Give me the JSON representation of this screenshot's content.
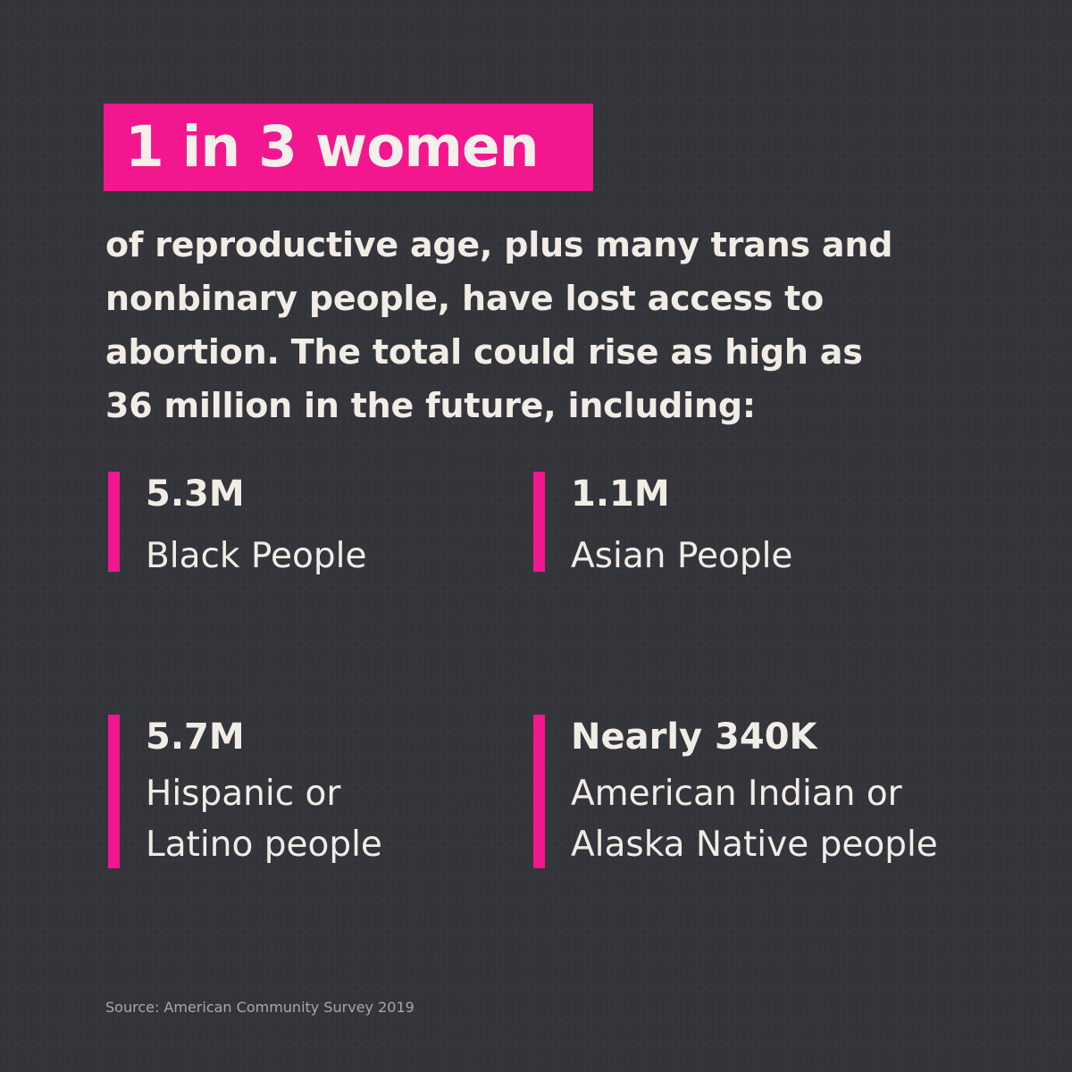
{
  "headline": "1 in 3 women",
  "body_lines": [
    "of reproductive age, plus many trans and",
    "nonbinary people, have lost access to",
    "abortion. The total could rise as high as",
    "36 million in the future, including:"
  ],
  "stats": [
    {
      "value": "5.3M",
      "label_lines": [
        "Black People"
      ]
    },
    {
      "value": "1.1M",
      "label_lines": [
        "Asian People"
      ]
    },
    {
      "value": "5.7M",
      "label_lines": [
        "Hispanic or",
        "Latino people"
      ]
    },
    {
      "value": "Nearly 340K",
      "label_lines": [
        "American Indian or",
        "Alaska Native people"
      ]
    }
  ],
  "source": "Source: American Community Survey 2019",
  "colors": {
    "background": "#34353a",
    "accent": "#f2178f",
    "text": "#f1ece6",
    "muted_text": "#a9a8a6"
  }
}
